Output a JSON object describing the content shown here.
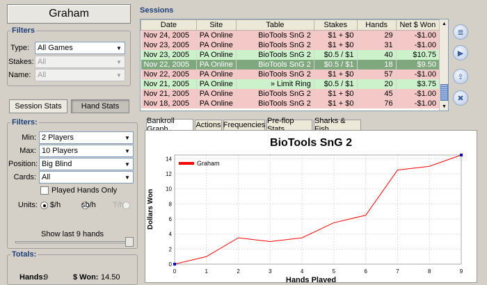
{
  "player": "Graham",
  "filters_top": {
    "legend": "Filters",
    "type_label": "Type:",
    "type_value": "All Games",
    "stakes_label": "Stakes:",
    "stakes_value": "All",
    "name_label": "Name:",
    "name_value": "All"
  },
  "stat_tabs": {
    "session": "Session Stats",
    "hand": "Hand Stats"
  },
  "filters2": {
    "legend": "Filters:",
    "min_label": "Min:",
    "min_value": "2 Players",
    "max_label": "Max:",
    "max_value": "10 Players",
    "position_label": "Position:",
    "position_value": "Big Blind",
    "cards_label": "Cards:",
    "cards_value": "All",
    "played_only": "Played Hands Only",
    "units_label": "Units:",
    "unit1": "$/h",
    "unit2": "sb/h",
    "unit3": "T/h",
    "slider_label": "Show last 9 hands"
  },
  "totals": {
    "legend": "Totals:",
    "hands_label": "Hands:",
    "hands_value": "9",
    "won_label": "$ Won:",
    "won_value": "14.50"
  },
  "sessions": {
    "title": "Sessions",
    "headers": [
      "Date",
      "Site",
      "Table",
      "Stakes",
      "Hands",
      "Net $ Won"
    ],
    "rows": [
      {
        "date": "Nov 24, 2005",
        "site": "PA Online",
        "table": "BioTools SnG 2",
        "stakes": "$1 + $0",
        "hands": "29",
        "net": "-$1.00",
        "status": "loss"
      },
      {
        "date": "Nov 23, 2005",
        "site": "PA Online",
        "table": "BioTools SnG 2",
        "stakes": "$1 + $0",
        "hands": "31",
        "net": "-$1.00",
        "status": "loss"
      },
      {
        "date": "Nov 23, 2005",
        "site": "PA Online",
        "table": "BioTools SnG 2",
        "stakes": "$0.5 / $1",
        "hands": "40",
        "net": "$10.75",
        "status": "win"
      },
      {
        "date": "Nov 22, 2005",
        "site": "PA Online",
        "table": "BioTools SnG 2",
        "stakes": "$0.5 / $1",
        "hands": "18",
        "net": "$9.50",
        "status": "selected"
      },
      {
        "date": "Nov 22, 2005",
        "site": "PA Online",
        "table": "BioTools SnG 2",
        "stakes": "$1 + $0",
        "hands": "57",
        "net": "-$1.00",
        "status": "loss"
      },
      {
        "date": "Nov 21, 2005",
        "site": "PA Online",
        "table": "» Limit Ring",
        "stakes": "$0.5 / $1",
        "hands": "20",
        "net": "$3.75",
        "status": "win"
      },
      {
        "date": "Nov 21, 2005",
        "site": "PA Online",
        "table": "BioTools SnG 2",
        "stakes": "$1 + $0",
        "hands": "45",
        "net": "-$1.00",
        "status": "loss"
      },
      {
        "date": "Nov 18, 2005",
        "site": "PA Online",
        "table": "BioTools SnG 2",
        "stakes": "$1 + $0",
        "hands": "76",
        "net": "-$1.00",
        "status": "loss"
      }
    ]
  },
  "colors": {
    "loss": "#f5c8c8",
    "win": "#ccf2cc",
    "selected": "#7fa87f",
    "line": "#ff0000",
    "accent": "#1e3f7a"
  },
  "side_icons": [
    "list-icon",
    "play-icon",
    "export-icon",
    "trash-icon"
  ],
  "graph_tabs": [
    "Bankroll Graph",
    "Actions",
    "Frequencies",
    "Pre-flop Stats",
    "Sharks & Fish"
  ],
  "chart_data": {
    "type": "line",
    "title": "BioTools SnG 2",
    "xlabel": "Hands Played",
    "ylabel": "Dollars Won",
    "x": [
      0,
      1,
      2,
      3,
      4,
      5,
      6,
      7,
      8,
      9
    ],
    "series": [
      {
        "name": "Graham",
        "values": [
          0,
          1,
          3.5,
          3,
          3.5,
          5.5,
          6.5,
          12.5,
          13,
          14.5
        ]
      }
    ],
    "xlim": [
      0,
      9
    ],
    "ylim": [
      0,
      14.5
    ],
    "xticks": [
      0,
      1,
      2,
      3,
      4,
      5,
      6,
      7,
      8,
      9
    ],
    "yticks": [
      0,
      2,
      4,
      6,
      8,
      10,
      12,
      14
    ],
    "grid": true,
    "legend": "top-left"
  }
}
